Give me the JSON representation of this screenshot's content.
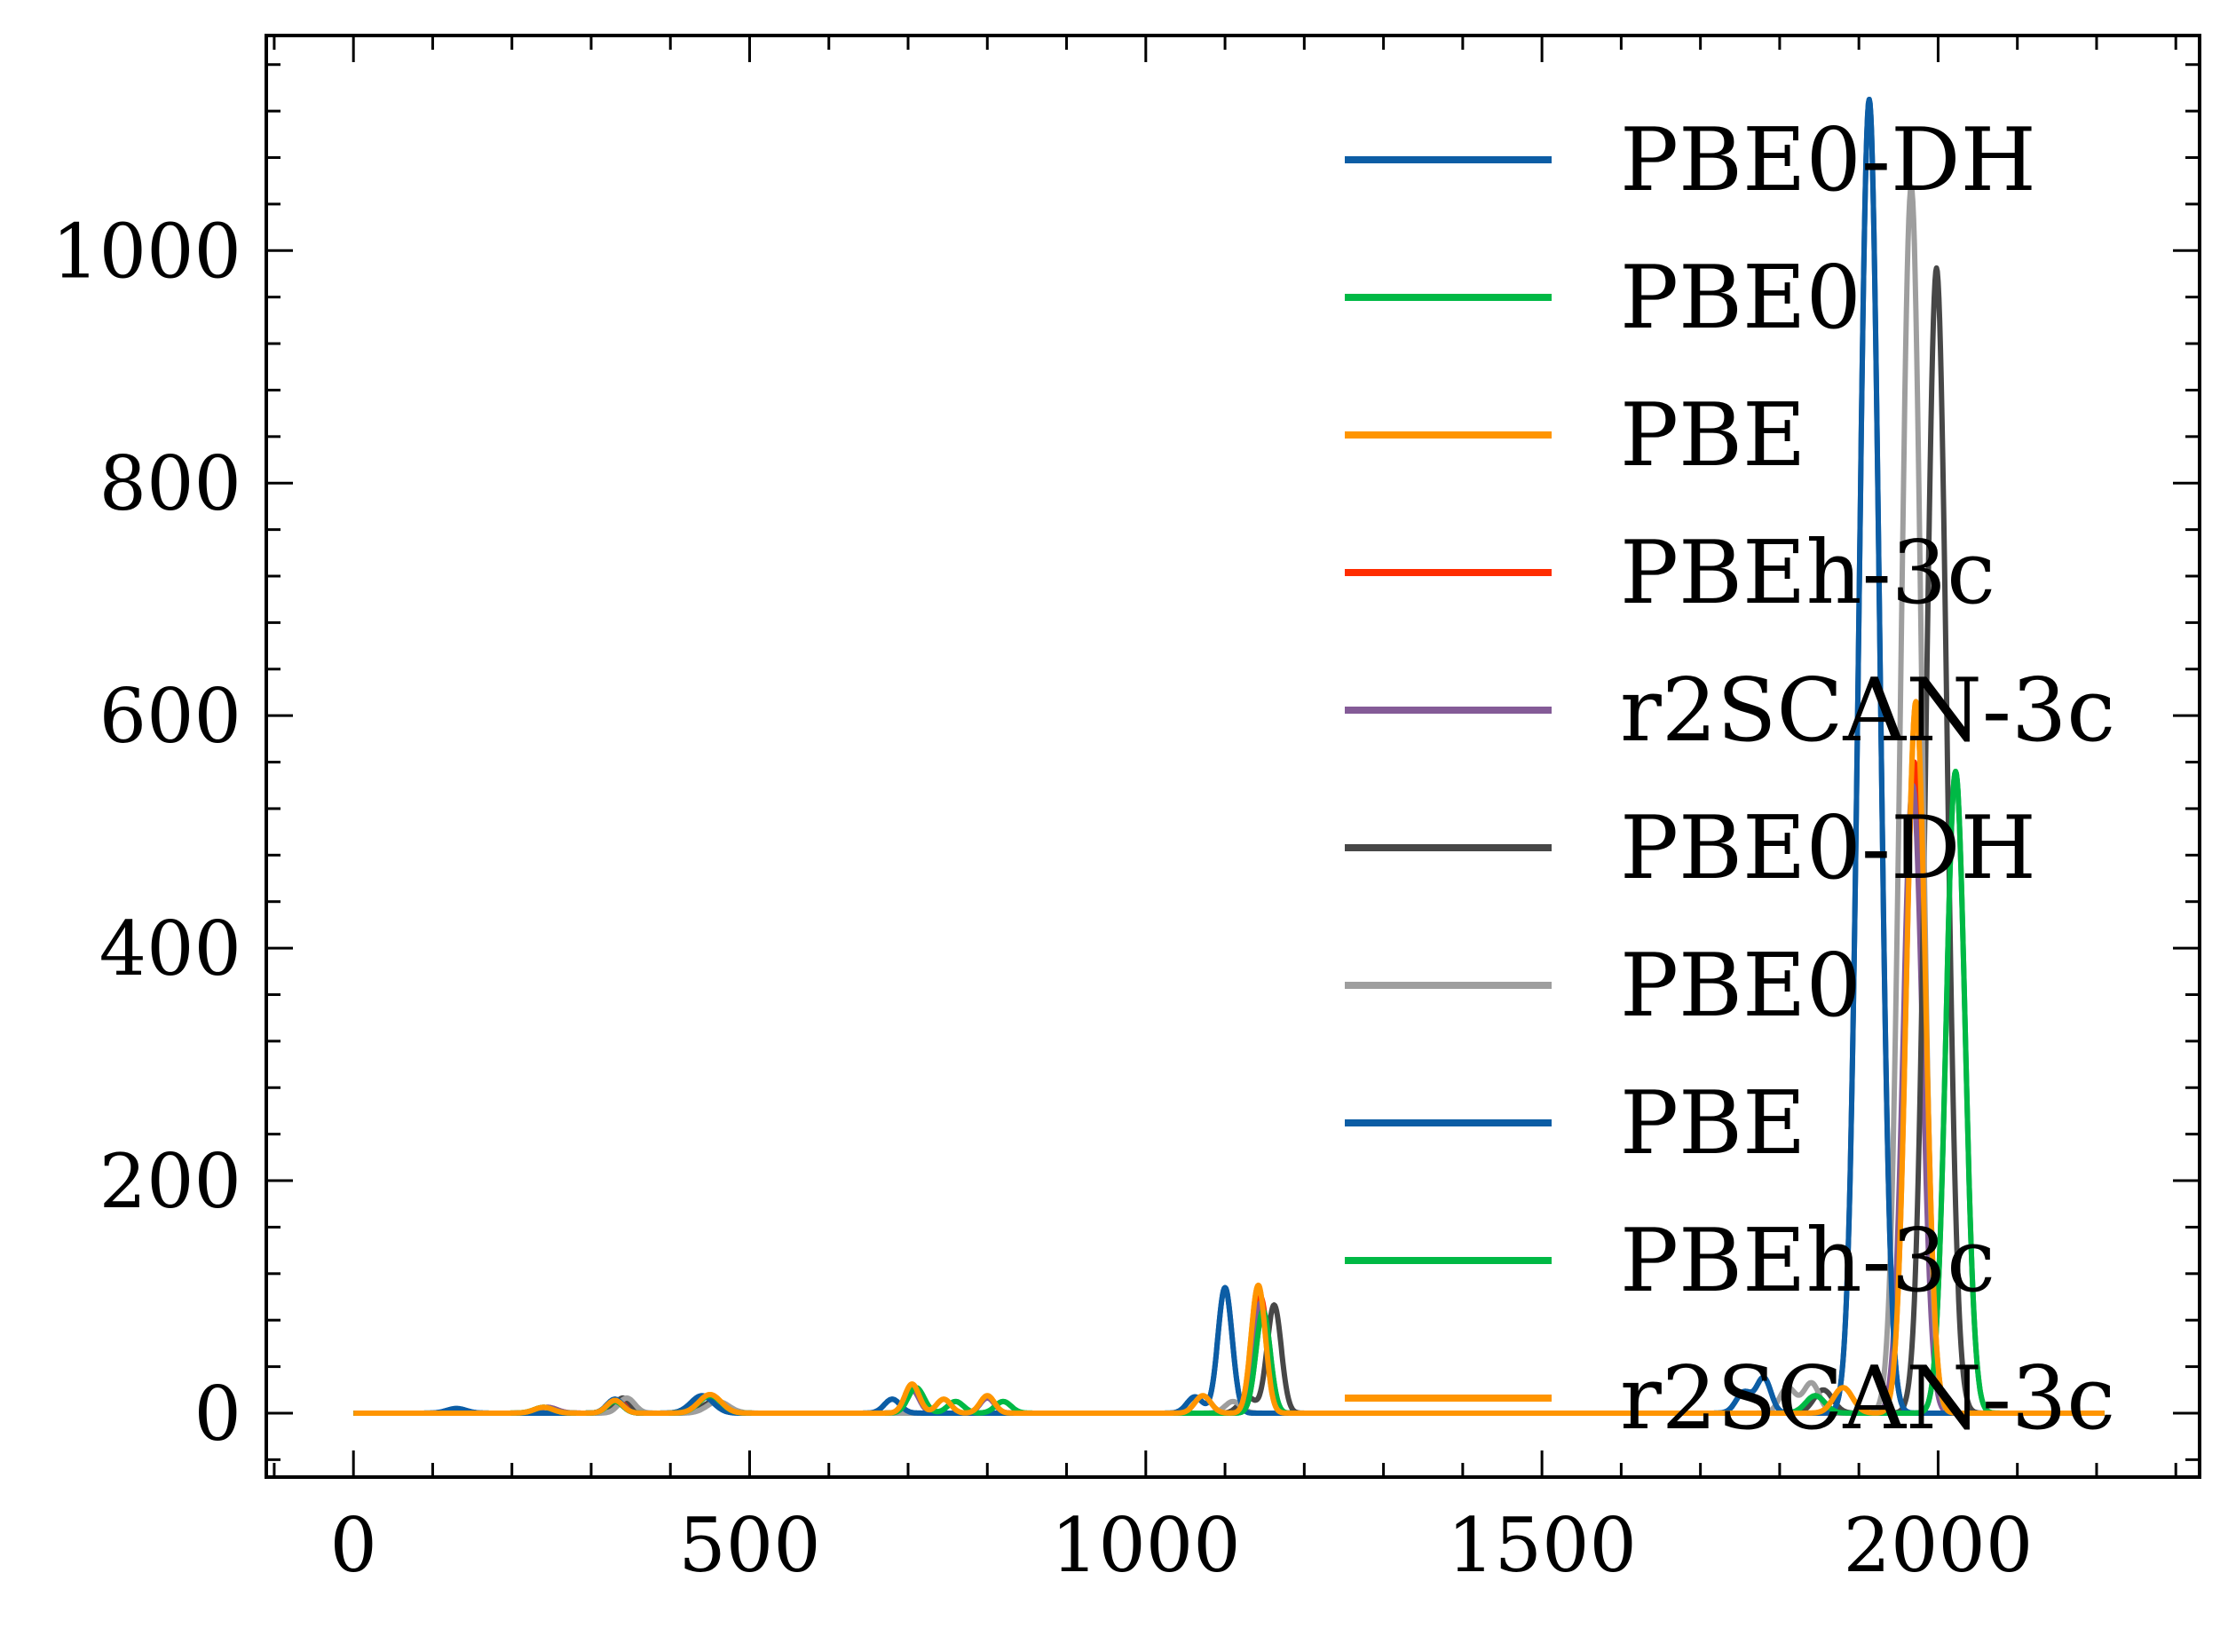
{
  "chart_data": {
    "type": "line",
    "title": "",
    "xlabel": "",
    "ylabel": "",
    "xlim": [
      -110,
      2330
    ],
    "ylim": [
      -55,
      1185
    ],
    "x_ticks": [
      {
        "value": 0,
        "label": "0"
      },
      {
        "value": 500,
        "label": "500"
      },
      {
        "value": 1000,
        "label": "1000"
      },
      {
        "value": 1500,
        "label": "1500"
      },
      {
        "value": 2000,
        "label": "2000"
      }
    ],
    "y_ticks": [
      {
        "value": 0,
        "label": "0"
      },
      {
        "value": 200,
        "label": "200"
      },
      {
        "value": 400,
        "label": "400"
      },
      {
        "value": 600,
        "label": "600"
      },
      {
        "value": 800,
        "label": "800"
      },
      {
        "value": 1000,
        "label": "1000"
      }
    ],
    "grid": false,
    "legend_position": "top-right",
    "x_range": [
      0,
      2210
    ],
    "series": [
      {
        "name": "PBE0-DH",
        "color": "#0C5DA5",
        "peaks": [
          [
            130,
            4,
            12
          ],
          [
            330,
            12,
            10
          ],
          [
            440,
            15,
            14
          ],
          [
            680,
            12,
            10
          ],
          [
            1062,
            14,
            10
          ],
          [
            1100,
            108,
            9
          ],
          [
            1755,
            18,
            10
          ],
          [
            1780,
            30,
            9
          ],
          [
            1913,
            1130,
            13
          ]
        ]
      },
      {
        "name": "PBE0",
        "color": "#00B945",
        "peaks": [
          [
            240,
            5,
            12
          ],
          [
            330,
            10,
            10
          ],
          [
            450,
            15,
            14
          ],
          [
            710,
            22,
            10
          ],
          [
            760,
            10,
            10
          ],
          [
            820,
            10,
            10
          ],
          [
            1148,
            88,
            9
          ],
          [
            1845,
            15,
            12
          ],
          [
            2022,
            552,
            12
          ]
        ]
      },
      {
        "name": "PBE",
        "color": "#FF9500",
        "peaks": [
          [
            240,
            5,
            12
          ],
          [
            330,
            11,
            10
          ],
          [
            450,
            16,
            14
          ],
          [
            705,
            25,
            9
          ],
          [
            745,
            12,
            9
          ],
          [
            800,
            15,
            9
          ],
          [
            1072,
            15,
            10
          ],
          [
            1142,
            110,
            9
          ],
          [
            1880,
            22,
            12
          ],
          [
            1972,
            612,
            12
          ]
        ]
      },
      {
        "name": "PBEh-3c",
        "color": "#FF2C00",
        "peaks": [
          [
            245,
            5,
            12
          ],
          [
            335,
            10,
            10
          ],
          [
            450,
            15,
            14
          ],
          [
            705,
            22,
            9
          ],
          [
            800,
            14,
            9
          ],
          [
            1145,
            100,
            9
          ],
          [
            1970,
            560,
            12
          ]
        ]
      },
      {
        "name": "r2SCAN-3c",
        "color": "#845B97",
        "peaks": [
          [
            245,
            5,
            12
          ],
          [
            330,
            10,
            10
          ],
          [
            448,
            14,
            14
          ],
          [
            705,
            20,
            9
          ],
          [
            800,
            13,
            9
          ],
          [
            1145,
            95,
            9
          ],
          [
            1968,
            540,
            12
          ]
        ]
      },
      {
        "name": "PBE0-DH",
        "color": "#474747",
        "peaks": [
          [
            340,
            13,
            10
          ],
          [
            455,
            10,
            14
          ],
          [
            1128,
            14,
            10
          ],
          [
            1162,
            93,
            9
          ],
          [
            1855,
            20,
            12
          ],
          [
            1998,
            985,
            13
          ]
        ]
      },
      {
        "name": "PBE0",
        "color": "#9E9E9E",
        "peaks": [
          [
            345,
            13,
            10
          ],
          [
            460,
            10,
            14
          ],
          [
            1110,
            10,
            10
          ],
          [
            1810,
            22,
            10
          ],
          [
            1840,
            26,
            10
          ],
          [
            1966,
            1055,
            13
          ]
        ]
      },
      {
        "name": "PBE",
        "color": "#0C5DA5",
        "peaks": [
          [
            130,
            4,
            12
          ],
          [
            330,
            12,
            10
          ],
          [
            440,
            15,
            14
          ],
          [
            680,
            12,
            10
          ],
          [
            1062,
            14,
            10
          ],
          [
            1100,
            108,
            9
          ],
          [
            1755,
            18,
            10
          ],
          [
            1780,
            30,
            9
          ],
          [
            1913,
            1130,
            13
          ]
        ]
      },
      {
        "name": "PBEh-3c",
        "color": "#00B945",
        "peaks": [
          [
            240,
            5,
            12
          ],
          [
            330,
            10,
            10
          ],
          [
            450,
            15,
            14
          ],
          [
            710,
            22,
            10
          ],
          [
            760,
            10,
            10
          ],
          [
            820,
            10,
            10
          ],
          [
            1148,
            88,
            9
          ],
          [
            1845,
            15,
            12
          ],
          [
            2022,
            552,
            12
          ]
        ]
      },
      {
        "name": "r2SCAN-3c",
        "color": "#FF9500",
        "peaks": [
          [
            240,
            5,
            12
          ],
          [
            330,
            11,
            10
          ],
          [
            450,
            16,
            14
          ],
          [
            705,
            25,
            9
          ],
          [
            745,
            12,
            9
          ],
          [
            800,
            15,
            9
          ],
          [
            1072,
            15,
            10
          ],
          [
            1142,
            110,
            9
          ],
          [
            1880,
            22,
            12
          ],
          [
            1972,
            612,
            12
          ]
        ]
      }
    ]
  }
}
